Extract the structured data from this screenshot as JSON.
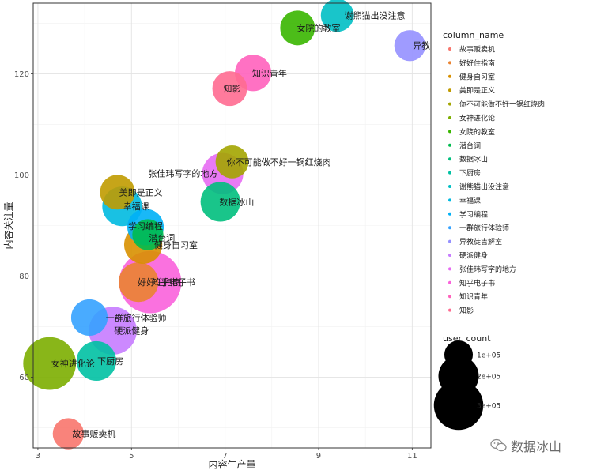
{
  "chart_data": {
    "type": "scatter",
    "xlabel": "内容生产量",
    "ylabel": "内容关注量",
    "xlim": [
      2.9,
      11.4
    ],
    "ylim": [
      46,
      134
    ],
    "x_ticks": [
      3,
      5,
      7,
      9,
      11
    ],
    "y_ticks": [
      60,
      80,
      100,
      120
    ],
    "grid": true,
    "legend_color_title": "column_name",
    "legend_size_title": "user_count",
    "size_legend": [
      {
        "label": "1e+05",
        "value": 100000
      },
      {
        "label": "2e+05",
        "value": 200000
      },
      {
        "label": "3e+05",
        "value": 300000
      }
    ],
    "points": [
      {
        "name": "故事贩卖机",
        "x": 3.65,
        "y": 48.8,
        "size": 80000,
        "color": "#F8766D"
      },
      {
        "name": "好好住指南",
        "x": 5.15,
        "y": 78.8,
        "size": 130000,
        "color": "#EA8331"
      },
      {
        "name": "健身自习室",
        "x": 5.25,
        "y": 86.2,
        "size": 120000,
        "color": "#D89000"
      },
      {
        "name": "美即是正义",
        "x": 4.7,
        "y": 96.6,
        "size": 100000,
        "color": "#C09B00"
      },
      {
        "name": "你不可能做不好一锅红烧肉",
        "x": 7.15,
        "y": 102.6,
        "size": 90000,
        "color": "#A3A500"
      },
      {
        "name": "女神进化论",
        "x": 3.25,
        "y": 62.7,
        "size": 230000,
        "color": "#7CAE00"
      },
      {
        "name": "女院的教室",
        "x": 8.55,
        "y": 129.1,
        "size": 100000,
        "color": "#39B600"
      },
      {
        "name": "潜台词",
        "x": 5.35,
        "y": 88.2,
        "size": 80000,
        "color": "#00BB4E"
      },
      {
        "name": "数据冰山",
        "x": 6.9,
        "y": 94.7,
        "size": 130000,
        "color": "#00BF7D"
      },
      {
        "name": "下厨房",
        "x": 4.25,
        "y": 63.2,
        "size": 130000,
        "color": "#00C1A3"
      },
      {
        "name": "谢熊猫出没注意",
        "x": 9.4,
        "y": 131.6,
        "size": 90000,
        "color": "#00BFC4"
      },
      {
        "name": "幸福课",
        "x": 4.8,
        "y": 93.8,
        "size": 130000,
        "color": "#00BAE0"
      },
      {
        "name": "学习编程",
        "x": 5.3,
        "y": 89.7,
        "size": 110000,
        "color": "#00B0F6"
      },
      {
        "name": "一群旅行体验师",
        "x": 4.1,
        "y": 71.8,
        "size": 110000,
        "color": "#35A2FF"
      },
      {
        "name": "异教徒吉解室",
        "x": 10.95,
        "y": 125.6,
        "size": 80000,
        "color": "#9590FF"
      },
      {
        "name": "硬派健身",
        "x": 4.6,
        "y": 69.2,
        "size": 190000,
        "color": "#C77CFF"
      },
      {
        "name": "张佳玮写字的地方",
        "x": 6.95,
        "y": 100.3,
        "size": 140000,
        "color": "#E76BF3"
      },
      {
        "name": "知乎电子书",
        "x": 5.4,
        "y": 78.8,
        "size": 320000,
        "color": "#FA62DB"
      },
      {
        "name": "知识青年",
        "x": 7.6,
        "y": 120.2,
        "size": 110000,
        "color": "#FF62BC"
      },
      {
        "name": "知影",
        "x": 7.1,
        "y": 117.1,
        "size": 100000,
        "color": "#FF6C91"
      }
    ],
    "labels": [
      {
        "text": "谢熊猫出没注意",
        "x": 10.2,
        "y": 131.6
      },
      {
        "text": "女院的教室",
        "x": 9.0,
        "y": 129.1
      },
      {
        "text": "异教",
        "x": 11.2,
        "y": 125.6
      },
      {
        "text": "知识青年",
        "x": 7.95,
        "y": 120.2
      },
      {
        "text": "知影",
        "x": 7.15,
        "y": 117.1
      },
      {
        "text": "你不可能做不好一锅红烧肉",
        "x": 8.15,
        "y": 102.6
      },
      {
        "text": "张佳玮写字的地方",
        "x": 6.1,
        "y": 100.3
      },
      {
        "text": "美即是正义",
        "x": 5.2,
        "y": 96.6
      },
      {
        "text": "幸福课",
        "x": 5.1,
        "y": 93.8
      },
      {
        "text": "数据冰山",
        "x": 7.25,
        "y": 94.7
      },
      {
        "text": "学习编程",
        "x": 5.3,
        "y": 89.9
      },
      {
        "text": "潜台词",
        "x": 5.65,
        "y": 87.6
      },
      {
        "text": "健身自习室",
        "x": 5.95,
        "y": 86.2
      },
      {
        "text": "好好住指南",
        "x": 5.6,
        "y": 78.8
      },
      {
        "text": "知乎电子书",
        "x": 5.9,
        "y": 78.8
      },
      {
        "text": "一群旅行体验师",
        "x": 5.1,
        "y": 71.8
      },
      {
        "text": "硬派健身",
        "x": 5.0,
        "y": 69.2
      },
      {
        "text": "女神进化论",
        "x": 3.75,
        "y": 62.7
      },
      {
        "text": "下厨房",
        "x": 4.55,
        "y": 63.2
      },
      {
        "text": "故事贩卖机",
        "x": 4.2,
        "y": 48.8
      }
    ]
  },
  "watermark": {
    "text": "数据冰山",
    "icon": "wechat-icon"
  }
}
